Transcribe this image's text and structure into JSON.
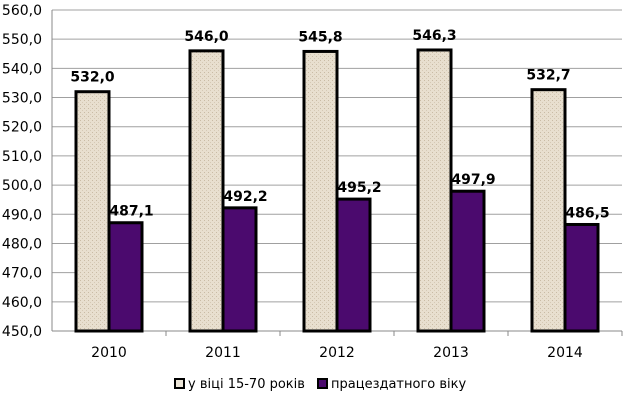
{
  "chart_data": {
    "type": "bar",
    "title": "",
    "xlabel": "",
    "ylabel": "",
    "categories": [
      "2010",
      "2011",
      "2012",
      "2013",
      "2014"
    ],
    "series": [
      {
        "name": "у віці 15-70 років",
        "values": [
          532.0,
          546.0,
          545.8,
          546.3,
          532.7
        ],
        "labels": [
          "532,0",
          "546,0",
          "545,8",
          "546,3",
          "532,7"
        ],
        "color": "#e4dac8"
      },
      {
        "name": "працездатного віку",
        "values": [
          487.1,
          492.2,
          495.2,
          497.9,
          486.5
        ],
        "labels": [
          "487,1",
          "492,2",
          "495,2",
          "497,9",
          "486,5"
        ],
        "color": "#4b0a6e"
      }
    ],
    "ylim": [
      450,
      560
    ],
    "yticks": [
      "450,0",
      "460,0",
      "470,0",
      "480,0",
      "490,0",
      "500,0",
      "510,0",
      "520,0",
      "530,0",
      "540,0",
      "550,0",
      "560,0"
    ],
    "grid": true,
    "legend": "bottom"
  }
}
